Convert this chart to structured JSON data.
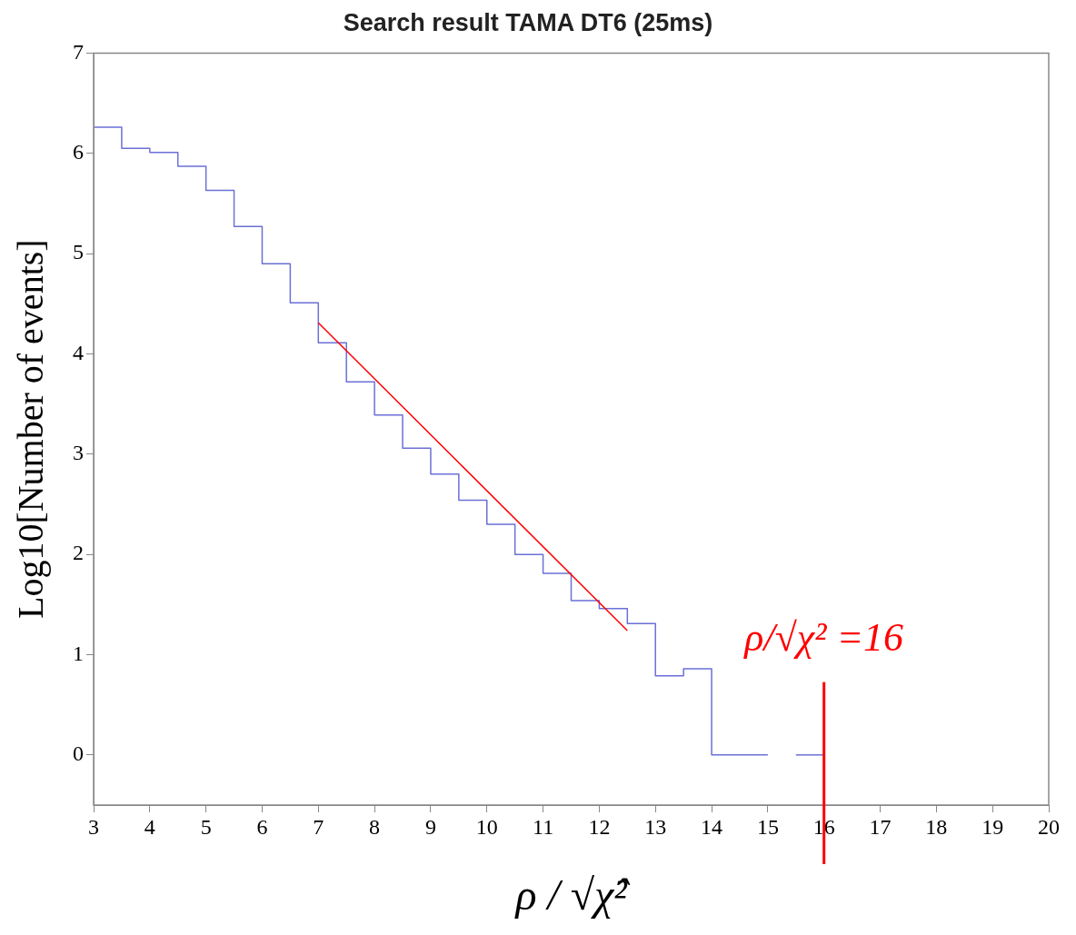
{
  "chart_data": {
    "type": "histogram",
    "title": "Search result TAMA DT6 (25ms)",
    "xlabel": "ρ / √χ̂²",
    "ylabel": "Log10[Number of events]",
    "series": [
      {
        "type": "histogram",
        "color": "#6b70d6",
        "bins": [
          3,
          3.5,
          4,
          4.5,
          5,
          5.5,
          6,
          6.5,
          7,
          7.5,
          8,
          8.5,
          9,
          9.5,
          10,
          10.5,
          11,
          11.5,
          12,
          12.5,
          13,
          13.5,
          14,
          14.5,
          15
        ],
        "values": [
          6.26,
          6.05,
          6.01,
          5.87,
          5.63,
          5.27,
          4.9,
          4.51,
          4.11,
          3.72,
          3.39,
          3.06,
          2.8,
          2.54,
          2.3,
          2.0,
          1.81,
          1.54,
          1.46,
          1.31,
          0.79,
          0.86,
          0,
          0
        ]
      },
      {
        "type": "line",
        "color": "#6b70d6",
        "x": [
          15.5,
          16
        ],
        "values": [
          0,
          0
        ]
      },
      {
        "type": "line",
        "color": "#ff0000",
        "x": [
          7,
          12.5
        ],
        "values": [
          4.31,
          1.24
        ]
      }
    ],
    "ref_lines": [
      {
        "axis": "x",
        "value": 16,
        "label": "ρ/√χ² =16",
        "color": "#ff0000"
      }
    ],
    "xlim": [
      3,
      20
    ],
    "xticks": [
      3,
      4,
      5,
      6,
      7,
      8,
      9,
      10,
      11,
      12,
      13,
      14,
      15,
      16,
      17,
      18,
      19,
      20
    ],
    "ylim": [
      -0.5,
      7
    ],
    "yticks": [
      0,
      1,
      2,
      3,
      4,
      5,
      6,
      7
    ],
    "grid": false,
    "legend": false
  }
}
